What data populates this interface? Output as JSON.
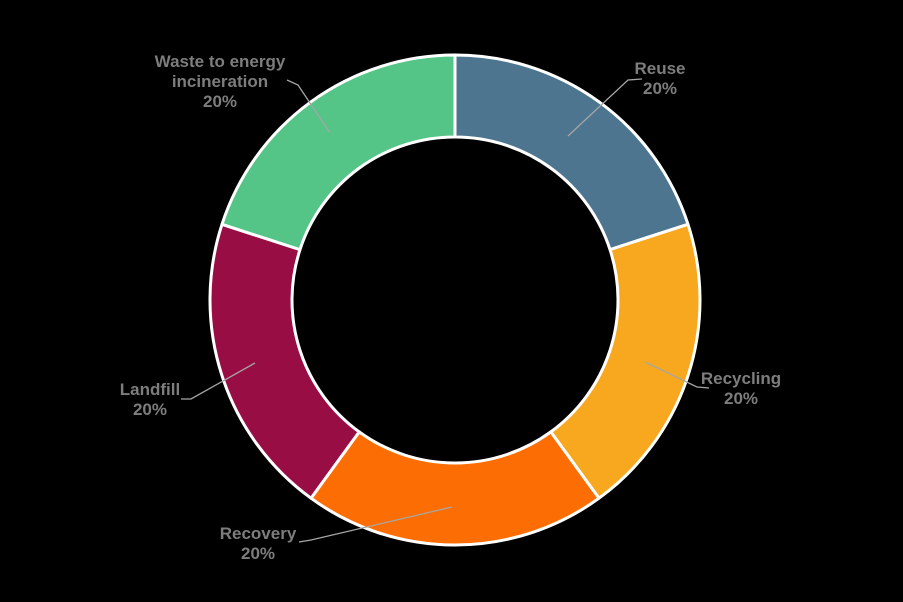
{
  "background_color": "#000000",
  "chart_data": {
    "type": "pie",
    "subtype": "donut",
    "hole_ratio": 0.66,
    "title": "",
    "legend_position": "none",
    "start_angle_deg": -90,
    "direction": "clockwise",
    "label_color": "#7d7d7d",
    "slice_border_color": "#ffffff",
    "leader_line_color": "#a6a6a6",
    "total_percent": 100,
    "segments": [
      {
        "label": "Reuse",
        "value": 20,
        "pct_label": "20%",
        "color": "#4e7590"
      },
      {
        "label": "Recycling",
        "value": 20,
        "pct_label": "20%",
        "color": "#f8a81e"
      },
      {
        "label": "Recovery",
        "value": 20,
        "pct_label": "20%",
        "color": "#fc6e04"
      },
      {
        "label": "Landfill",
        "value": 20,
        "pct_label": "20%",
        "color": "#990d45"
      },
      {
        "label": "Waste to energy incineration",
        "value": 20,
        "pct_label": "20%",
        "color": "#54c586"
      }
    ]
  }
}
